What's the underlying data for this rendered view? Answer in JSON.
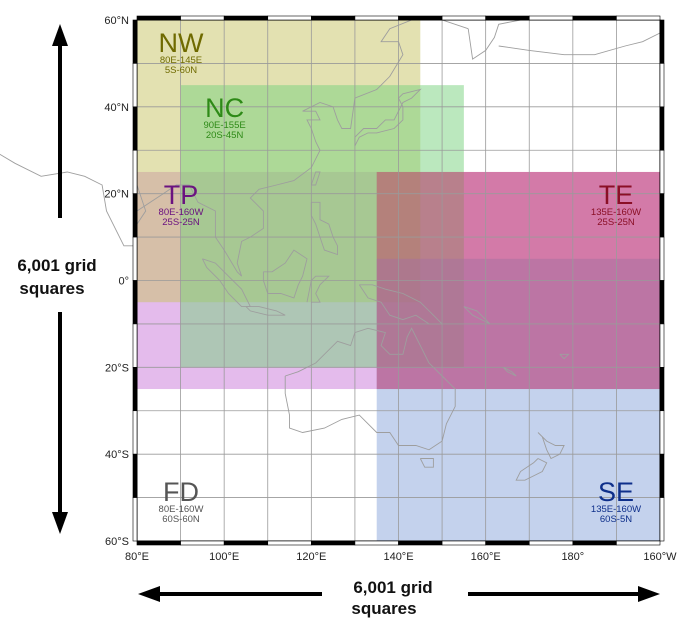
{
  "map": {
    "lon_range": [
      80,
      200
    ],
    "lat_range": [
      -60,
      60
    ],
    "lon_ticks": [
      {
        "value": 80,
        "label": "80°E"
      },
      {
        "value": 100,
        "label": "100°E"
      },
      {
        "value": 120,
        "label": "120°E"
      },
      {
        "value": 140,
        "label": "140°E"
      },
      {
        "value": 160,
        "label": "160°E"
      },
      {
        "value": 180,
        "label": "180°"
      },
      {
        "value": 200,
        "label": "160°W"
      }
    ],
    "lat_ticks": [
      {
        "value": 60,
        "label": "60°N"
      },
      {
        "value": 40,
        "label": "40°N"
      },
      {
        "value": 20,
        "label": "20°N"
      },
      {
        "value": 0,
        "label": "0°"
      },
      {
        "value": -20,
        "label": "20°S"
      },
      {
        "value": -40,
        "label": "40°S"
      },
      {
        "value": -60,
        "label": "60°S"
      }
    ],
    "grid_step_deg": 10,
    "grid_on": true,
    "basemap": "coastline outlines",
    "regions": [
      {
        "code": "FD",
        "lines": [
          "80E-160W",
          "60S-60N"
        ],
        "lon": [
          80,
          200
        ],
        "lat": [
          -60,
          60
        ],
        "fill": "#ffffff",
        "text_color": "#555555",
        "label_anchor": "bottom-left"
      },
      {
        "code": "TP",
        "lines": [
          "80E-160W",
          "25S-25N"
        ],
        "lon": [
          80,
          200
        ],
        "lat": [
          -25,
          25
        ],
        "fill": "#c978d9",
        "text_color": "#6b1380",
        "label_anchor": "top-left"
      },
      {
        "code": "NW",
        "lines": [
          "80E-145E",
          "5S-60N"
        ],
        "lon": [
          80,
          145
        ],
        "lat": [
          -5,
          60
        ],
        "fill": "#c8c464",
        "text_color": "#6f6a00",
        "label_anchor": "top-left"
      },
      {
        "code": "NC",
        "lines": [
          "90E-155E",
          "20S-45N"
        ],
        "lon": [
          90,
          155
        ],
        "lat": [
          -20,
          45
        ],
        "fill": "#78d27e",
        "text_color": "#2e8a17",
        "label_anchor": "top-left"
      },
      {
        "code": "SE",
        "lines": [
          "135E-160W",
          "60S-5N"
        ],
        "lon": [
          135,
          200
        ],
        "lat": [
          -60,
          5
        ],
        "fill": "#8aa6db",
        "text_color": "#0e2f8a",
        "label_anchor": "bottom-right"
      },
      {
        "code": "TE",
        "lines": [
          "135E-160W",
          "25S-25N"
        ],
        "lon": [
          135,
          200
        ],
        "lat": [
          -25,
          25
        ],
        "fill": "#c23a63",
        "text_color": "#8a0f26",
        "label_anchor": "top-right"
      }
    ]
  },
  "annotations": {
    "vertical_label": [
      "6,001 grid",
      "squares"
    ],
    "horizontal_label": [
      "6,001 grid",
      "squares"
    ]
  },
  "colors": {
    "grid": "#9a9a9a",
    "frame": "#000000",
    "coast": "#9e9e9e",
    "arrow": "#000000"
  }
}
